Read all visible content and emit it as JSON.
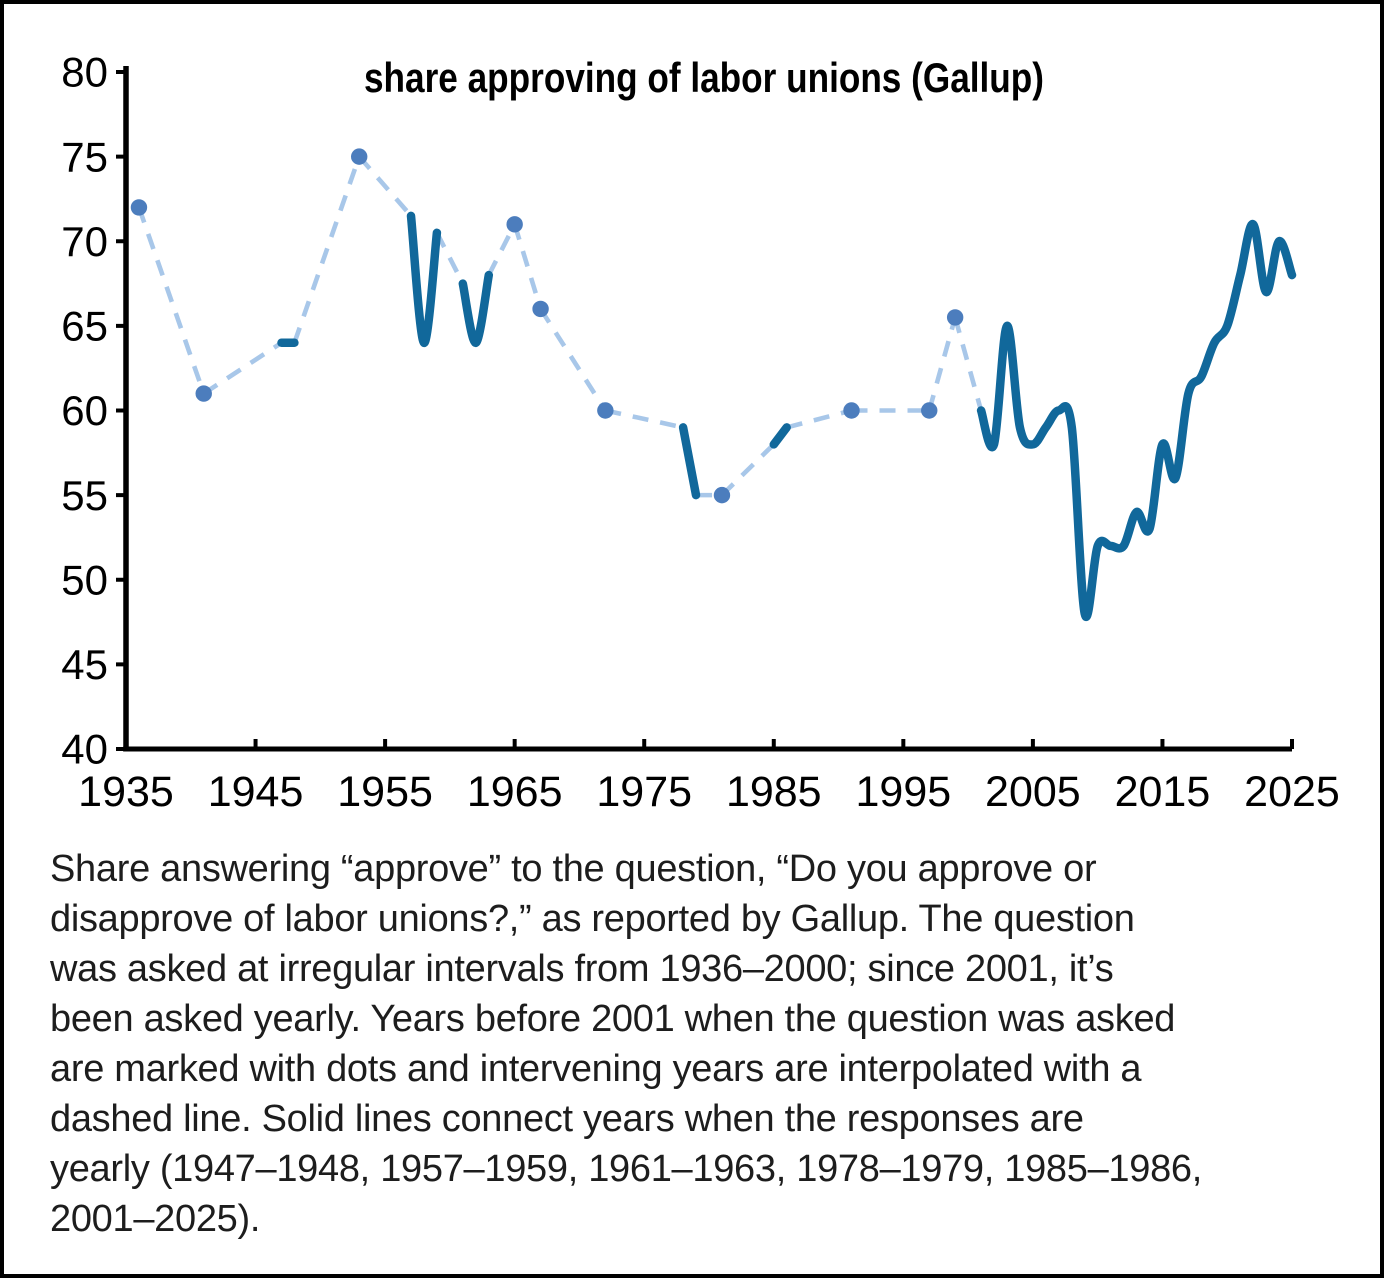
{
  "title": "share approving of labor unions (Gallup)",
  "caption": {
    "lines": [
      "Share answering “approve” to the question, “Do you approve or",
      "disapprove of labor unions?,” as reported by Gallup. The question",
      "was asked at irregular intervals from 1936–2000; since 2001, it’s",
      "been asked yearly. Years before 2001 when the question was asked",
      "are marked with dots and intervening years are interpolated with a",
      "dashed line. Solid lines connect years when the responses are",
      "yearly (1947–1948, 1957–1959, 1961–1963, 1978–1979, 1985–1986,",
      "2001–2025)."
    ]
  },
  "colors": {
    "solid_line": "#11689b",
    "dashed_line": "#a8c7e9",
    "dot": "#4c7dbd",
    "axis": "#000000",
    "text": "#000000",
    "background": "#ffffff",
    "border": "#000000"
  },
  "chart_data": {
    "type": "line",
    "title": "share approving of labor unions (Gallup)",
    "xlabel": "",
    "ylabel": "",
    "x_axis": {
      "min": 1935,
      "max": 2025,
      "ticks": [
        1935,
        1945,
        1955,
        1965,
        1975,
        1985,
        1995,
        2005,
        2015,
        2025
      ]
    },
    "y_axis": {
      "min": 40,
      "max": 80,
      "ticks": [
        40,
        45,
        50,
        55,
        60,
        65,
        70,
        75,
        80
      ]
    },
    "grid": false,
    "legend": "none",
    "style": {
      "isolated_years_marker": "dot",
      "intervening_years": "dashed interpolation",
      "consecutive_years": "solid line"
    },
    "isolated_points": [
      {
        "year": 1936,
        "value": 72
      },
      {
        "year": 1941,
        "value": 61
      },
      {
        "year": 1953,
        "value": 75
      },
      {
        "year": 1965,
        "value": 71
      },
      {
        "year": 1967,
        "value": 66
      },
      {
        "year": 1972,
        "value": 60
      },
      {
        "year": 1981,
        "value": 55
      },
      {
        "year": 1991,
        "value": 60
      },
      {
        "year": 1997,
        "value": 60
      },
      {
        "year": 1999,
        "value": 65.5
      }
    ],
    "solid_segments": [
      {
        "start_year": 1947,
        "values": [
          64,
          64
        ]
      },
      {
        "start_year": 1957,
        "values": [
          71.5,
          64,
          70.5
        ]
      },
      {
        "start_year": 1961,
        "values": [
          67.5,
          64,
          68
        ]
      },
      {
        "start_year": 1978,
        "values": [
          59,
          55
        ]
      },
      {
        "start_year": 1985,
        "values": [
          58,
          59
        ]
      },
      {
        "start_year": 2001,
        "values": [
          60,
          58,
          65,
          59,
          58,
          59,
          60,
          59,
          48,
          52,
          52,
          52,
          54,
          53,
          58,
          56,
          61,
          62,
          64,
          65,
          68,
          71,
          67,
          70,
          68
        ]
      }
    ]
  }
}
